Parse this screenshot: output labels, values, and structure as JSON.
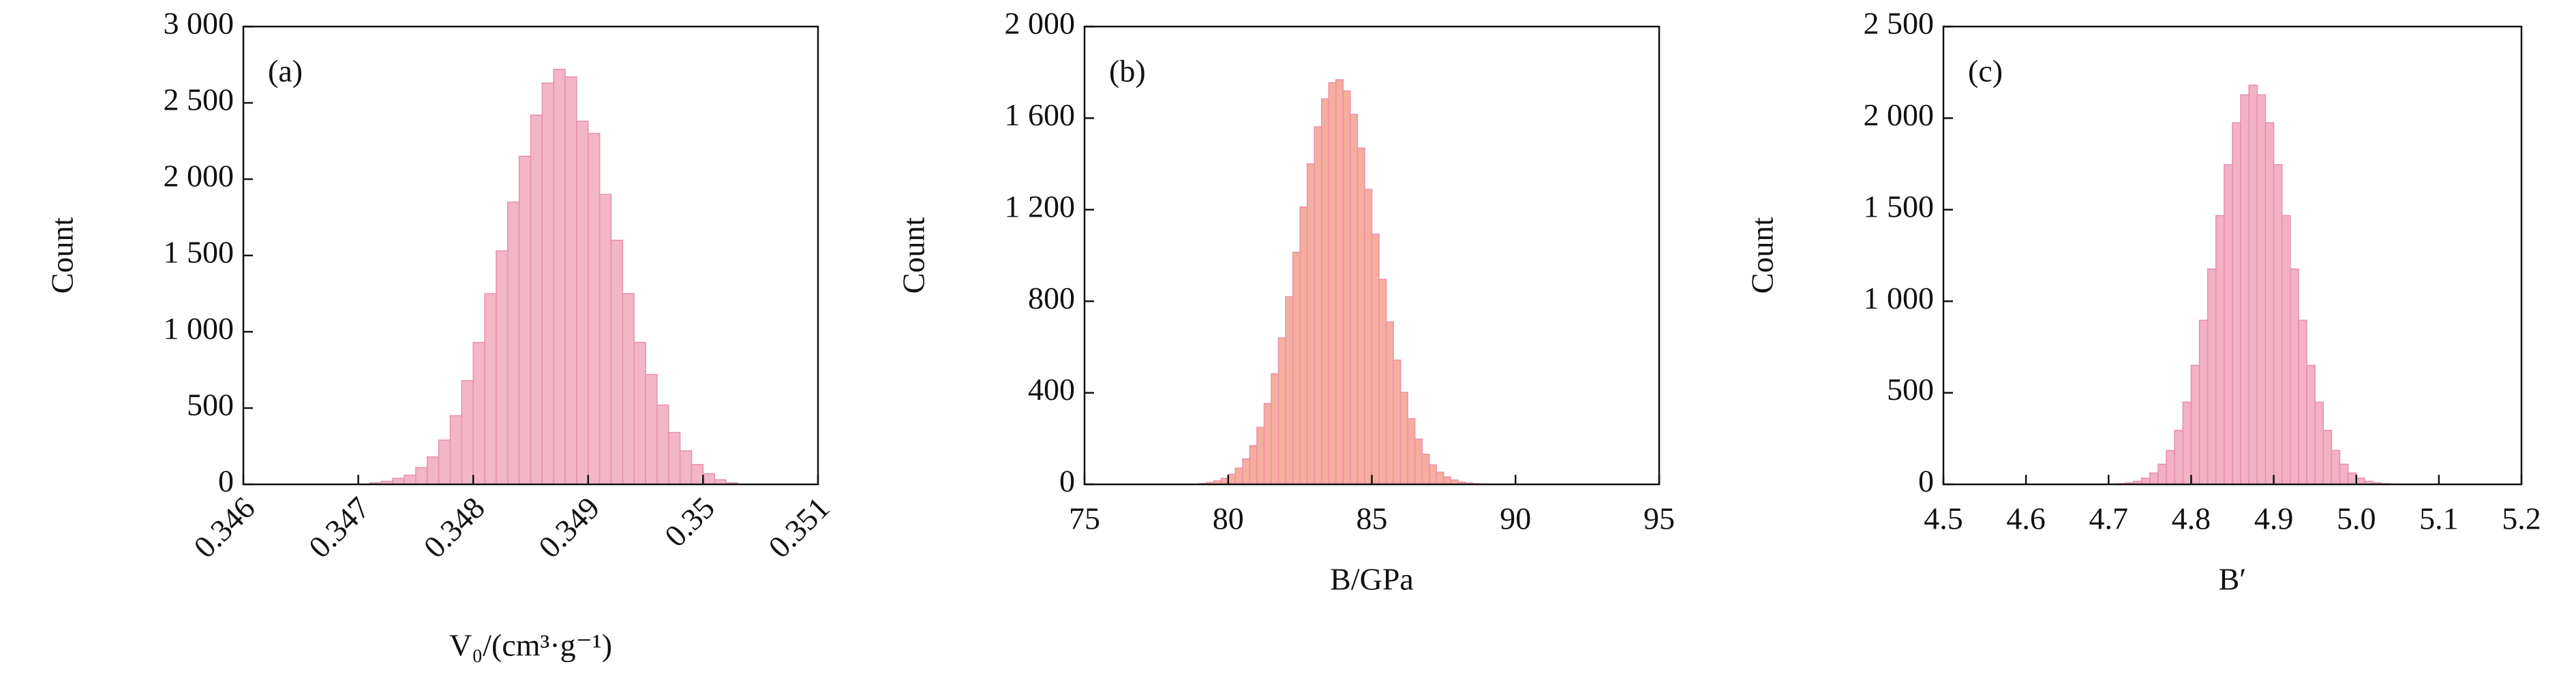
{
  "chart_data": [
    {
      "type": "histogram",
      "annotation": "(a)",
      "xlabel": "V₀/(cm³·g⁻¹)",
      "ylabel": "Count",
      "color": "#f2b6c6",
      "edge_color": "#e890b0",
      "bins": [
        0.3471,
        0.3472,
        0.3473,
        0.3474,
        0.3475,
        0.3476,
        0.3477,
        0.3478,
        0.3479,
        0.348,
        0.3481,
        0.3482,
        0.3483,
        0.3484,
        0.3485,
        0.3486,
        0.3487,
        0.3488,
        0.3489,
        0.349,
        0.3491,
        0.3492,
        0.3493,
        0.3494,
        0.3495,
        0.3496,
        0.3497,
        0.3498,
        0.3499,
        0.35,
        0.3501,
        0.3502,
        0.3503
      ],
      "values": [
        10,
        20,
        40,
        60,
        110,
        180,
        290,
        450,
        680,
        930,
        1250,
        1530,
        1850,
        2150,
        2420,
        2630,
        2720,
        2670,
        2380,
        2300,
        1900,
        1600,
        1250,
        930,
        720,
        520,
        340,
        220,
        130,
        70,
        30,
        10
      ],
      "xlim": [
        0.346,
        0.351
      ],
      "ylim": [
        0,
        3000
      ],
      "xticks": [
        0.346,
        0.347,
        0.348,
        0.349,
        0.35,
        0.351
      ],
      "yticks": [
        0,
        500,
        {
          "value": 1000,
          "label": "1 000"
        },
        {
          "value": 1500,
          "label": "1 500"
        },
        {
          "value": 2000,
          "label": "2 000"
        },
        {
          "value": 2500,
          "label": "2 500"
        },
        {
          "value": 3000,
          "label": "3 000"
        }
      ]
    },
    {
      "type": "histogram",
      "annotation": "(b)",
      "xlabel": "B/GPa",
      "ylabel": "Count",
      "color": "#f5ae9e",
      "edge_color": "#ee8fa8",
      "bins": [
        79,
        79.25,
        79.5,
        79.75,
        80,
        80.25,
        80.5,
        80.75,
        81,
        81.25,
        81.5,
        81.75,
        82,
        82.25,
        82.5,
        82.75,
        83,
        83.25,
        83.5,
        83.75,
        84,
        84.25,
        84.5,
        84.75,
        85,
        85.25,
        85.5,
        85.75,
        86,
        86.25,
        86.5,
        86.75,
        87,
        87.25,
        87.5,
        87.75,
        88,
        88.25,
        88.5,
        88.75,
        89
      ],
      "values": [
        4,
        8,
        15,
        26,
        44,
        71,
        111,
        169,
        249,
        353,
        483,
        640,
        820,
        1014,
        1212,
        1400,
        1562,
        1684,
        1755,
        1768,
        1719,
        1617,
        1469,
        1289,
        1093,
        896,
        710,
        543,
        402,
        287,
        198,
        132,
        85,
        53,
        32,
        19,
        10,
        6,
        3,
        2
      ],
      "xlim": [
        75,
        95
      ],
      "ylim": [
        0,
        2000
      ],
      "xticks": [
        75,
        80,
        85,
        90,
        95
      ],
      "yticks": [
        0,
        400,
        800,
        {
          "value": 1200,
          "label": "1 200"
        },
        {
          "value": 1600,
          "label": "1 600"
        },
        {
          "value": 2000,
          "label": "2 000"
        }
      ]
    },
    {
      "type": "histogram",
      "annotation": "(c)",
      "xlabel": "B′",
      "ylabel": "Count",
      "color": "#f2b2c4",
      "edge_color": "#e88cb6",
      "bins": [
        4.7,
        4.71,
        4.72,
        4.73,
        4.74,
        4.75,
        4.76,
        4.77,
        4.78,
        4.79,
        4.8,
        4.81,
        4.82,
        4.83,
        4.84,
        4.85,
        4.86,
        4.87,
        4.88,
        4.89,
        4.9,
        4.91,
        4.92,
        4.93,
        4.94,
        4.95,
        4.96,
        4.97,
        4.98,
        4.99,
        5,
        5.01,
        5.02,
        5.03,
        5.04,
        5.05
      ],
      "values": [
        2,
        4,
        8,
        17,
        34,
        62,
        110,
        185,
        295,
        449,
        650,
        896,
        1176,
        1468,
        1746,
        1975,
        2127,
        2180,
        2127,
        1975,
        1746,
        1468,
        1176,
        896,
        650,
        449,
        295,
        185,
        110,
        62,
        34,
        17,
        8,
        4,
        2
      ],
      "xlim": [
        4.5,
        5.2
      ],
      "ylim": [
        0,
        2500
      ],
      "xticks": [
        4.5,
        4.6,
        4.7,
        4.8,
        4.9,
        {
          "value": 5,
          "label": "5.0"
        },
        5.1,
        5.2
      ],
      "yticks": [
        0,
        500,
        {
          "value": 1000,
          "label": "1 000"
        },
        {
          "value": 1500,
          "label": "1 500"
        },
        {
          "value": 2000,
          "label": "2 000"
        },
        {
          "value": 2500,
          "label": "2 500"
        }
      ]
    }
  ]
}
